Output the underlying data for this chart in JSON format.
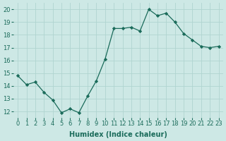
{
  "x": [
    0,
    1,
    2,
    3,
    4,
    5,
    6,
    7,
    8,
    9,
    10,
    11,
    12,
    13,
    14,
    15,
    16,
    17,
    18,
    19,
    20,
    21,
    22,
    23
  ],
  "y": [
    14.8,
    14.1,
    14.3,
    13.5,
    12.9,
    11.9,
    12.2,
    11.9,
    13.2,
    14.4,
    16.1,
    18.5,
    18.5,
    18.6,
    18.3,
    20.0,
    19.5,
    19.7,
    19.0,
    18.1,
    17.6,
    17.1,
    17.0,
    17.1
  ],
  "line_color": "#1a6b5a",
  "marker": "D",
  "marker_size": 2.2,
  "bg_color": "#cde8e5",
  "grid_color": "#b0d4d0",
  "xlabel": "Humidex (Indice chaleur)",
  "xlim": [
    -0.5,
    23.5
  ],
  "ylim": [
    11.5,
    20.5
  ],
  "yticks": [
    12,
    13,
    14,
    15,
    16,
    17,
    18,
    19,
    20
  ],
  "xticks": [
    0,
    1,
    2,
    3,
    4,
    5,
    6,
    7,
    8,
    9,
    10,
    11,
    12,
    13,
    14,
    15,
    16,
    17,
    18,
    19,
    20,
    21,
    22,
    23
  ],
  "tick_fontsize": 6,
  "label_fontsize": 7,
  "tick_color": "#1a6b5a",
  "label_color": "#1a6b5a"
}
